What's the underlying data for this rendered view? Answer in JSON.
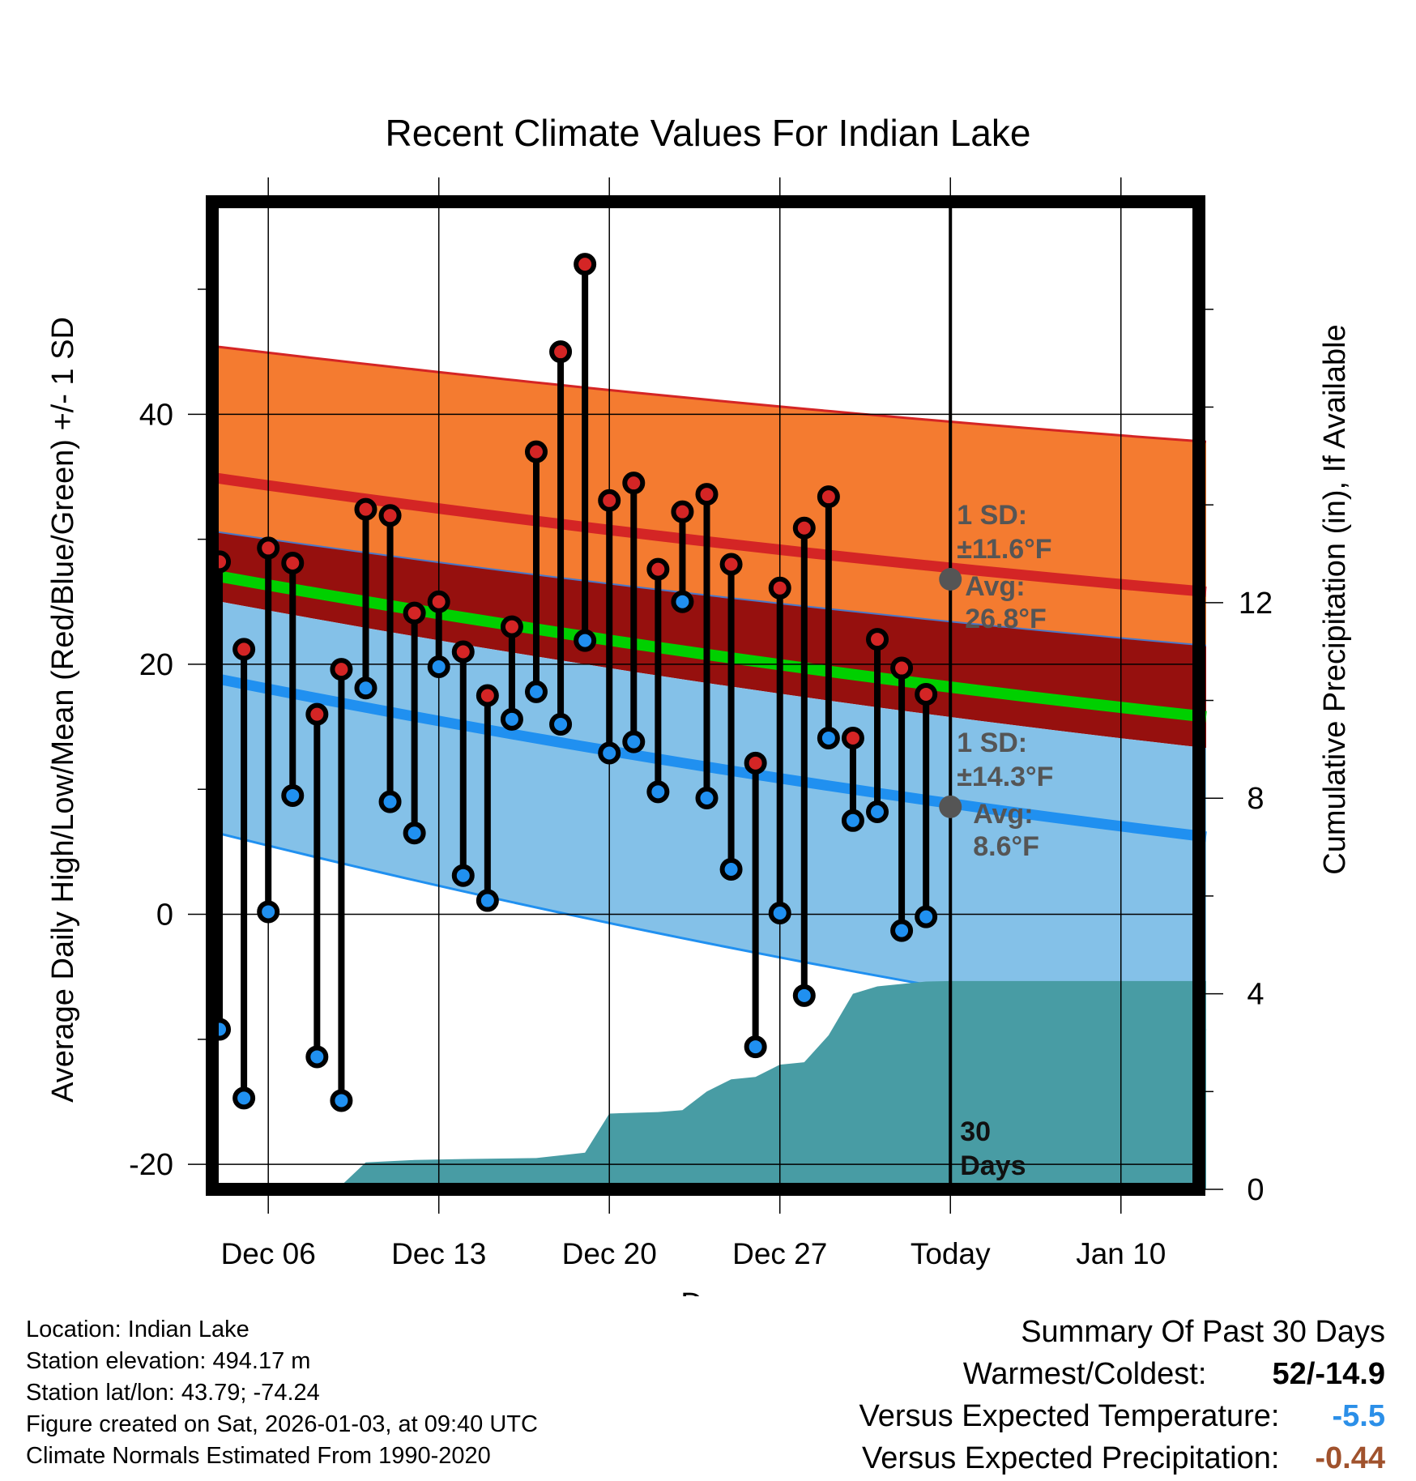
{
  "chart_data": {
    "type": "climate-range",
    "title": "Recent Climate Values For Indian Lake",
    "xlabel": "Day",
    "ylabel": "Average Daily High/Low/Mean (Red/Blue/Green) +/- 1 SD",
    "y2label": "Cumulative Precipitation (in), If Available",
    "ylim": [
      -22,
      57
    ],
    "y2lim": [
      0,
      20.2
    ],
    "yticks": [
      -20,
      0,
      20,
      40
    ],
    "y2ticks": [
      0,
      4,
      8,
      12
    ],
    "xlim": [
      0.4,
      41.5
    ],
    "xticks": [
      {
        "day": 3,
        "label": "Dec 06"
      },
      {
        "day": 10,
        "label": "Dec 13"
      },
      {
        "day": 17,
        "label": "Dec 20"
      },
      {
        "day": 24,
        "label": "Dec 27"
      },
      {
        "day": 31,
        "label": "Today"
      },
      {
        "day": 38,
        "label": "Jan 10"
      }
    ],
    "today_day": 31,
    "days": [
      1,
      2,
      3,
      4,
      5,
      6,
      7,
      8,
      9,
      10,
      11,
      12,
      13,
      14,
      15,
      16,
      17,
      18,
      19,
      20,
      21,
      22,
      23,
      24,
      25,
      26,
      27,
      28,
      29,
      30
    ],
    "highs": [
      28.2,
      21.2,
      29.3,
      28.1,
      16.0,
      19.6,
      32.4,
      31.9,
      24.1,
      25.0,
      21.0,
      17.5,
      23.0,
      37.0,
      45.0,
      52.0,
      33.1,
      34.5,
      27.6,
      32.2,
      33.6,
      28.0,
      12.1,
      26.1,
      30.9,
      33.4,
      14.1,
      22.0,
      19.7,
      17.6
    ],
    "lows": [
      -9.2,
      -14.7,
      0.2,
      9.5,
      -11.4,
      -14.9,
      18.1,
      9.0,
      6.5,
      19.8,
      3.1,
      1.1,
      15.6,
      17.8,
      15.2,
      21.9,
      12.9,
      13.8,
      9.8,
      25.0,
      9.3,
      3.6,
      -10.6,
      0.1,
      -6.5,
      14.1,
      7.5,
      8.2,
      -1.3,
      -0.2
    ],
    "normals": {
      "day": [
        0.5,
        41.5
      ],
      "high": [
        35.0,
        25.8
      ],
      "high_sd_upper": [
        45.5,
        37.8
      ],
      "mean": [
        27.2,
        15.8
      ],
      "mean_upper_edge": [
        30.7,
        21.5
      ],
      "low": [
        19.0,
        6.2
      ],
      "low_sd_upper": [
        25.2,
        13.3
      ],
      "low_sd_lower": [
        6.7,
        -9.3
      ]
    },
    "precip_cumulative": [
      [
        0.5,
        0
      ],
      [
        3,
        0
      ],
      [
        4,
        0.02
      ],
      [
        6,
        0.08
      ],
      [
        7,
        0.55
      ],
      [
        9,
        0.6
      ],
      [
        11,
        0.62
      ],
      [
        14,
        0.64
      ],
      [
        16,
        0.75
      ],
      [
        17,
        1.55
      ],
      [
        19,
        1.58
      ],
      [
        20,
        1.62
      ],
      [
        21,
        2.0
      ],
      [
        22,
        2.25
      ],
      [
        23,
        2.3
      ],
      [
        24,
        2.55
      ],
      [
        25,
        2.6
      ],
      [
        26,
        3.15
      ],
      [
        27,
        4.0
      ],
      [
        28,
        4.15
      ],
      [
        30,
        4.25
      ],
      [
        31,
        4.26
      ],
      [
        41.5,
        4.26
      ]
    ],
    "annotations": {
      "high_sd_label": "1 SD:",
      "high_sd_value": "±11.6°F",
      "high_avg_label": "Avg:",
      "high_avg_value": "26.8°F",
      "high_avg_temp": 26.8,
      "low_sd_label": "1 SD:",
      "low_sd_value": "±14.3°F",
      "low_avg_label": "Avg:",
      "low_avg_value": "8.6°F",
      "low_avg_temp": 8.6,
      "window_count": "30",
      "window_unit": "Days"
    }
  },
  "colors": {
    "orange_band": "#f47b30",
    "dark_red_band": "#96100e",
    "blue_band": "#84c1e8",
    "high_line": "#d42525",
    "low_line": "#2090f0",
    "mean_line": "#00d000",
    "precip_fill": "#489ca4",
    "high_marker": "#d42525",
    "low_marker": "#2090f0",
    "annotation": "#555555",
    "temp_anomaly": "#2b8fe8",
    "precip_anomaly": "#a0522d"
  },
  "metadata": {
    "location": "Location: Indian Lake",
    "elevation": "Station elevation: 494.17 m",
    "latlon": "Station lat/lon: 43.79; -74.24",
    "created": "Figure created on Sat, 2026-01-03, at 09:40 UTC",
    "normals": "Climate Normals Estimated From 1990-2020"
  },
  "summary": {
    "title": "Summary Of Past 30 Days",
    "warmest_coldest_label": "Warmest/Coldest:",
    "warmest_coldest_value": "52/-14.9",
    "temp_label": "Versus Expected Temperature:",
    "temp_value": "-5.5",
    "precip_label": "Versus Expected Precipitation:",
    "precip_value": "-0.44"
  }
}
